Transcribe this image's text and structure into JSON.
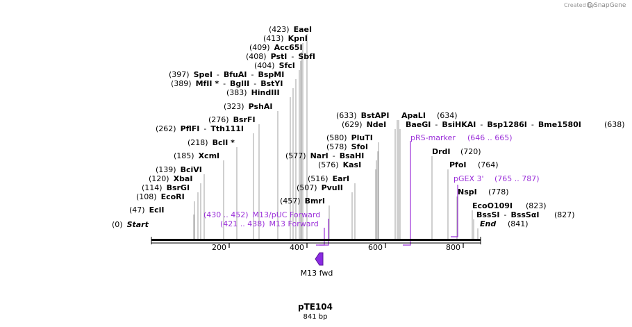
{
  "credit": {
    "prefix": "Created by",
    "brand": "SnapGene"
  },
  "map": {
    "name": "pTE104",
    "length_label": "841 bp"
  },
  "axis_ticks": [
    "200",
    "400",
    "600",
    "800"
  ],
  "feature": {
    "label": "M13 fwd"
  },
  "lines": [
    {
      "pos": "(0)",
      "parts": [
        {
          "t": "Start",
          "s": "bi"
        }
      ]
    },
    {
      "pos": "(47)",
      "parts": [
        {
          "t": "EciI",
          "s": "b"
        }
      ]
    },
    {
      "pos": "(108)",
      "parts": [
        {
          "t": "EcoRI",
          "s": "b"
        }
      ]
    },
    {
      "pos": "(114)",
      "parts": [
        {
          "t": "BsrGI",
          "s": "b"
        }
      ]
    },
    {
      "pos": "(120)",
      "parts": [
        {
          "t": "XbaI",
          "s": "b"
        }
      ]
    },
    {
      "pos": "(139)",
      "parts": [
        {
          "t": "BciVI",
          "s": "b"
        }
      ]
    },
    {
      "pos": "(185)",
      "parts": [
        {
          "t": "XcmI",
          "s": "b"
        }
      ]
    },
    {
      "pos": "(218)",
      "parts": [
        {
          "t": "BclI *",
          "s": "b"
        }
      ]
    },
    {
      "pos": "(262)",
      "parts": [
        {
          "t": "PflFI",
          "s": "b"
        },
        {
          "t": "-",
          "s": "n"
        },
        {
          "t": "Tth111I",
          "s": "b"
        }
      ]
    },
    {
      "pos": "(276)",
      "parts": [
        {
          "t": "BsrFI",
          "s": "b"
        }
      ]
    },
    {
      "pos": "(323)",
      "parts": [
        {
          "t": "PshAI",
          "s": "b"
        }
      ]
    },
    {
      "pos": "(383)",
      "parts": [
        {
          "t": "HindIII",
          "s": "b"
        }
      ]
    },
    {
      "pos": "(389)",
      "parts": [
        {
          "t": "MfII *",
          "s": "b"
        },
        {
          "t": "-",
          "s": "n"
        },
        {
          "t": "BglII",
          "s": "b"
        },
        {
          "t": "-",
          "s": "n"
        },
        {
          "t": "BstYI",
          "s": "b"
        }
      ]
    },
    {
      "pos": "(397)",
      "parts": [
        {
          "t": "SpeI",
          "s": "b"
        },
        {
          "t": "-",
          "s": "n"
        },
        {
          "t": "BfuAI",
          "s": "b"
        },
        {
          "t": "-",
          "s": "n"
        },
        {
          "t": "BspMI",
          "s": "b"
        }
      ]
    },
    {
      "pos": "(404)",
      "parts": [
        {
          "t": "SfcI",
          "s": "b"
        }
      ]
    },
    {
      "pos": "(408)",
      "parts": [
        {
          "t": "PstI",
          "s": "b"
        },
        {
          "t": "-",
          "s": "n"
        },
        {
          "t": "SbfI",
          "s": "b"
        }
      ]
    },
    {
      "pos": "(409)",
      "parts": [
        {
          "t": "Acc65I",
          "s": "b"
        }
      ]
    },
    {
      "pos": "(413)",
      "parts": [
        {
          "t": "KpnI",
          "s": "b"
        }
      ]
    },
    {
      "pos": "(423)",
      "parts": [
        {
          "t": "EaeI",
          "s": "b"
        }
      ]
    },
    {
      "pos": "(421 .. 438)",
      "parts": [
        {
          "t": "M13 Forward",
          "s": "p"
        }
      ],
      "purple": true
    },
    {
      "pos": "(430 .. 452)",
      "parts": [
        {
          "t": "M13/pUC Forward",
          "s": "p"
        }
      ],
      "purple": true
    },
    {
      "pos": "(457)",
      "parts": [
        {
          "t": "BmrI",
          "s": "b"
        }
      ]
    },
    {
      "pos": "(507)",
      "parts": [
        {
          "t": "PvuII",
          "s": "b"
        }
      ]
    },
    {
      "pos": "(516)",
      "parts": [
        {
          "t": "EarI",
          "s": "b"
        }
      ]
    },
    {
      "pos": "(576)",
      "parts": [
        {
          "t": "KasI",
          "s": "b"
        }
      ]
    },
    {
      "pos": "(577)",
      "parts": [
        {
          "t": "NarI",
          "s": "b"
        },
        {
          "t": "-",
          "s": "n"
        },
        {
          "t": "BsaHI",
          "s": "b"
        }
      ]
    },
    {
      "pos": "(578)",
      "parts": [
        {
          "t": "SfoI",
          "s": "b"
        }
      ]
    },
    {
      "pos": "(580)",
      "parts": [
        {
          "t": "PluTI",
          "s": "b"
        }
      ]
    },
    {
      "pos": "(629)",
      "parts": [
        {
          "t": "NdeI",
          "s": "b"
        }
      ]
    },
    {
      "pos": "(633)",
      "parts": [
        {
          "t": "BstAPI",
          "s": "b"
        }
      ]
    },
    {
      "pos": "(634)",
      "parts": [
        {
          "t": "ApaLI",
          "s": "b"
        }
      ]
    },
    {
      "pos": "(638)",
      "parts": [
        {
          "t": "BaeGI",
          "s": "b"
        },
        {
          "t": "-",
          "s": "n"
        },
        {
          "t": "BsiHKAI",
          "s": "b"
        },
        {
          "t": "-",
          "s": "n"
        },
        {
          "t": "Bsp1286I",
          "s": "b"
        },
        {
          "t": "-",
          "s": "n"
        },
        {
          "t": "Bme1580I",
          "s": "b"
        }
      ]
    },
    {
      "pos": "(646 .. 665)",
      "parts": [
        {
          "t": "pRS-marker",
          "s": "p"
        }
      ],
      "purple": true
    },
    {
      "pos": "(720)",
      "parts": [
        {
          "t": "DrdI",
          "s": "b"
        }
      ]
    },
    {
      "pos": "(764)",
      "parts": [
        {
          "t": "PfoI",
          "s": "b"
        }
      ]
    },
    {
      "pos": "(765 .. 787)",
      "parts": [
        {
          "t": "pGEX 3'",
          "s": "p"
        }
      ],
      "purple": true
    },
    {
      "pos": "(778)",
      "parts": [
        {
          "t": "NspI",
          "s": "b"
        }
      ]
    },
    {
      "pos": "(823)",
      "parts": [
        {
          "t": "EcoO109I",
          "s": "b"
        }
      ]
    },
    {
      "pos": "(827)",
      "parts": [
        {
          "t": "BssSI",
          "s": "b"
        },
        {
          "t": "-",
          "s": "n"
        },
        {
          "t": "BssSαI",
          "s": "b"
        }
      ]
    },
    {
      "pos": "(841)",
      "parts": [
        {
          "t": "End",
          "s": "bi"
        }
      ]
    }
  ]
}
